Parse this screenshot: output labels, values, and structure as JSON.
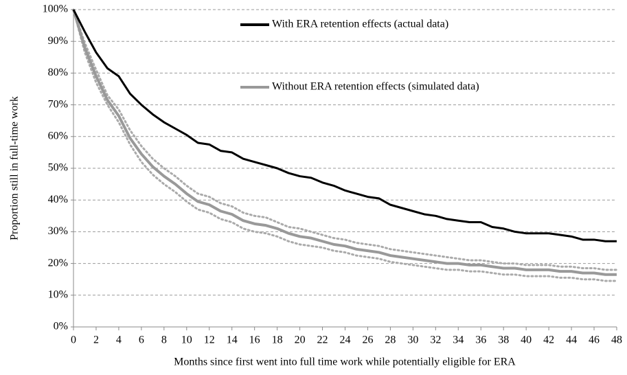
{
  "chart_data": {
    "type": "line",
    "x_label": "Months since first went into full time work while potentially eligible  for ERA",
    "y_label": "Proportion still  in full-time work",
    "x": [
      0,
      1,
      2,
      3,
      4,
      5,
      6,
      7,
      8,
      9,
      10,
      11,
      12,
      13,
      14,
      15,
      16,
      17,
      18,
      19,
      20,
      21,
      22,
      23,
      24,
      25,
      26,
      27,
      28,
      29,
      30,
      31,
      32,
      33,
      34,
      35,
      36,
      37,
      38,
      39,
      40,
      41,
      42,
      43,
      44,
      45,
      46,
      47,
      48
    ],
    "series": [
      {
        "name": "With ERA retention effects (actual data)",
        "color": "#000000",
        "linestyle": "solid",
        "values": [
          100,
          93,
          86.5,
          81.5,
          79,
          73.5,
          70,
          67,
          64.5,
          62.5,
          60.5,
          58,
          57.5,
          55.5,
          55,
          53,
          52,
          51,
          50,
          48.5,
          47.5,
          47,
          45.5,
          44.5,
          43,
          42,
          41,
          40.5,
          38.5,
          37.5,
          36.5,
          35.5,
          35,
          34,
          33.5,
          33,
          33,
          31.5,
          31,
          30,
          29.5,
          29.5,
          29.5,
          29,
          28.5,
          27.5,
          27.5,
          27,
          27
        ]
      },
      {
        "name": "Without ERA retention effects (simulated data)",
        "color": "#999999",
        "linestyle": "solid",
        "values": [
          100,
          88,
          79,
          71.5,
          66.5,
          59.5,
          54.5,
          50.5,
          47.5,
          45,
          42,
          39.5,
          38.5,
          36.5,
          35.5,
          33.5,
          32.5,
          32,
          31,
          29.5,
          28.5,
          28,
          27,
          26,
          25.5,
          24.5,
          24,
          23.5,
          22.5,
          22,
          21.5,
          21,
          20.5,
          20,
          20,
          19.5,
          19.5,
          19,
          18.5,
          18.5,
          18,
          18,
          18,
          17.5,
          17.5,
          17,
          17,
          16.5,
          16.5
        ]
      },
      {
        "color": "#aaaaaa",
        "linestyle": "dotted",
        "values": [
          100,
          89.5,
          81,
          73,
          68.5,
          62,
          57,
          53,
          50,
          47.5,
          44.5,
          42,
          41,
          39,
          38,
          36,
          35,
          34.5,
          33,
          31.5,
          31,
          30,
          29,
          28,
          27.5,
          26.5,
          26,
          25.5,
          24.5,
          24,
          23.5,
          23,
          22.5,
          22,
          21.5,
          21,
          21,
          20.5,
          20,
          20,
          19.5,
          19.5,
          19.5,
          19,
          19,
          18.5,
          18.5,
          18,
          18
        ]
      },
      {
        "color": "#aaaaaa",
        "linestyle": "dotted",
        "values": [
          100,
          86.5,
          77,
          70,
          64.5,
          57.5,
          52,
          48,
          45,
          42.5,
          39.5,
          37,
          36,
          34,
          33,
          31,
          30,
          29.5,
          28.5,
          27,
          26,
          25.5,
          25,
          24,
          23.5,
          22.5,
          22,
          21.5,
          20.5,
          20,
          19.5,
          19,
          18.5,
          18,
          18,
          17.5,
          17.5,
          17,
          16.5,
          16.5,
          16,
          16,
          16,
          15.5,
          15.5,
          15,
          15,
          14.5,
          14.5
        ]
      }
    ],
    "xlim": [
      0,
      48
    ],
    "xticks": [
      0,
      2,
      4,
      6,
      8,
      10,
      12,
      14,
      16,
      18,
      20,
      22,
      24,
      26,
      28,
      30,
      32,
      34,
      36,
      38,
      40,
      42,
      44,
      46,
      48
    ],
    "ylim": [
      0,
      100
    ],
    "yticks": [
      {
        "value": 0,
        "label": "0%"
      },
      {
        "value": 10,
        "label": "10%"
      },
      {
        "value": 20,
        "label": "20%"
      },
      {
        "value": 30,
        "label": "30%"
      },
      {
        "value": 40,
        "label": "40%"
      },
      {
        "value": 50,
        "label": "50%"
      },
      {
        "value": 60,
        "label": "60%"
      },
      {
        "value": 70,
        "label": "70%"
      },
      {
        "value": 80,
        "label": "80%"
      },
      {
        "value": 90,
        "label": "90%"
      },
      {
        "value": 100,
        "label": "100%"
      }
    ],
    "grid": true
  }
}
